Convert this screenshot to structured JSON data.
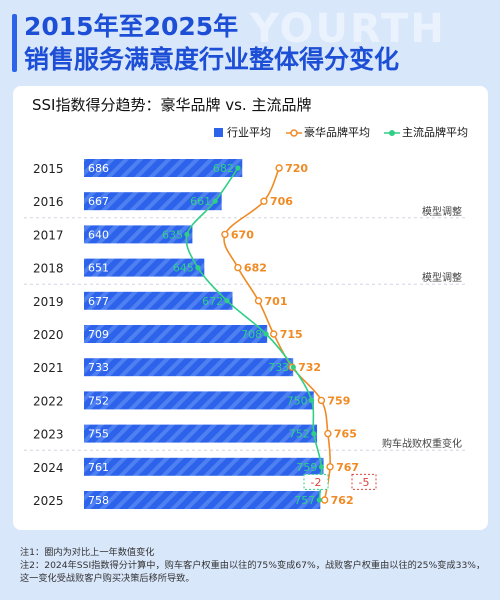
{
  "header": {
    "watermark": "YOURTH",
    "title_line1": "2015年至2025年",
    "title_line2": "销售服务满意度行业整体得分变化"
  },
  "chart_title": "SSI指数得分趋势：豪华品牌 vs. 主流品牌",
  "colors": {
    "industry": "#2c63ea",
    "luxury": "#f08a24",
    "mainstream": "#2fcf87",
    "delta": "#d9443f"
  },
  "chart_data": {
    "type": "bar",
    "orientation": "horizontal",
    "categories": [
      "2015",
      "2016",
      "2017",
      "2018",
      "2019",
      "2020",
      "2021",
      "2022",
      "2023",
      "2024",
      "2025"
    ],
    "series": [
      {
        "name": "行业平均",
        "kind": "bar",
        "values": [
          686,
          667,
          640,
          651,
          677,
          709,
          733,
          752,
          755,
          761,
          758
        ]
      },
      {
        "name": "豪华品牌平均",
        "kind": "line",
        "values": [
          720,
          706,
          670,
          682,
          701,
          715,
          732,
          759,
          765,
          767,
          762
        ]
      },
      {
        "name": "主流品牌平均",
        "kind": "line",
        "values": [
          682,
          661,
          635,
          645,
          672,
          708,
          733,
          750,
          752,
          759,
          757
        ]
      }
    ],
    "annotations": [
      {
        "after_year": "2016",
        "text": "模型调整"
      },
      {
        "after_year": "2018",
        "text": "模型调整"
      },
      {
        "after_year": "2023",
        "text": "购车战败权重变化"
      }
    ],
    "deltas_2025": {
      "mainstream": "-2",
      "luxury": "-5"
    },
    "xlim": [
      540,
      790
    ],
    "grid": false,
    "legend_position": "top-right"
  },
  "notes": [
    "注1：圈内为对比上一年数值变化",
    "注2：2024年SSI指数得分计算中，购车客户权重由以往的75%变成67%，战败客户权重由以往的25%变成33%，这一变化受战败客户购买决策后移所导致。"
  ]
}
